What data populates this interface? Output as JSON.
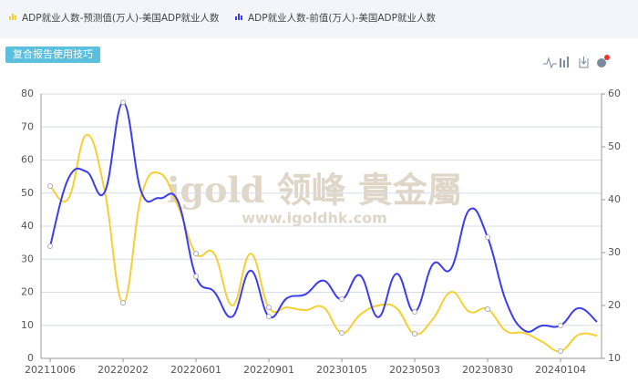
{
  "chart_data": {
    "type": "line",
    "button": "复合报告使用技巧",
    "watermark": [
      "igold 领峰 貴金屬",
      "www.igoldhk.com"
    ],
    "categories": [
      "20211006",
      null,
      null,
      null,
      "20220202",
      null,
      null,
      null,
      "20220601",
      null,
      null,
      null,
      "20220901",
      null,
      null,
      null,
      "20230105",
      null,
      null,
      null,
      "20230503",
      null,
      null,
      null,
      "20230830",
      null,
      null,
      null,
      "20240104",
      null,
      null
    ],
    "series": [
      {
        "name": "ADP就业人数-预测值(万人)-美国ADP就业人数",
        "color": "#f5d033",
        "axis": "y",
        "values": [
          52.1,
          48.3,
          67.6,
          50.5,
          16.8,
          49.1,
          56,
          46.3,
          31.7,
          31.7,
          16,
          31.7,
          15.4,
          15.4,
          14.6,
          15.4,
          7.7,
          13.2,
          16,
          15.2,
          7.4,
          11.9,
          20.1,
          14.1,
          14.9,
          8.3,
          7.7,
          5,
          2.2,
          7.2,
          6.9
        ]
      },
      {
        "name": "ADP就业人数-前值(万人)-美国ADP就业人数",
        "color": "#3c3cf0",
        "axis": "y2",
        "values": [
          31.2,
          44,
          45.3,
          41.5,
          58.4,
          41.5,
          40.3,
          39.8,
          25.5,
          22.6,
          17.9,
          26.6,
          17.9,
          21.4,
          22.1,
          24.7,
          21.2,
          25.7,
          17.8,
          26,
          18.8,
          27.8,
          27,
          38.1,
          32.9,
          20.9,
          15.3,
          16.2,
          16.2,
          19.5,
          16.9
        ]
      }
    ],
    "ylim": [
      0,
      80
    ],
    "yticks": [
      0,
      10,
      20,
      30,
      40,
      50,
      60,
      70,
      80
    ],
    "y2lim": [
      10,
      60
    ],
    "y2ticks": [
      10,
      20,
      30,
      40,
      50,
      60
    ],
    "grid": true
  }
}
